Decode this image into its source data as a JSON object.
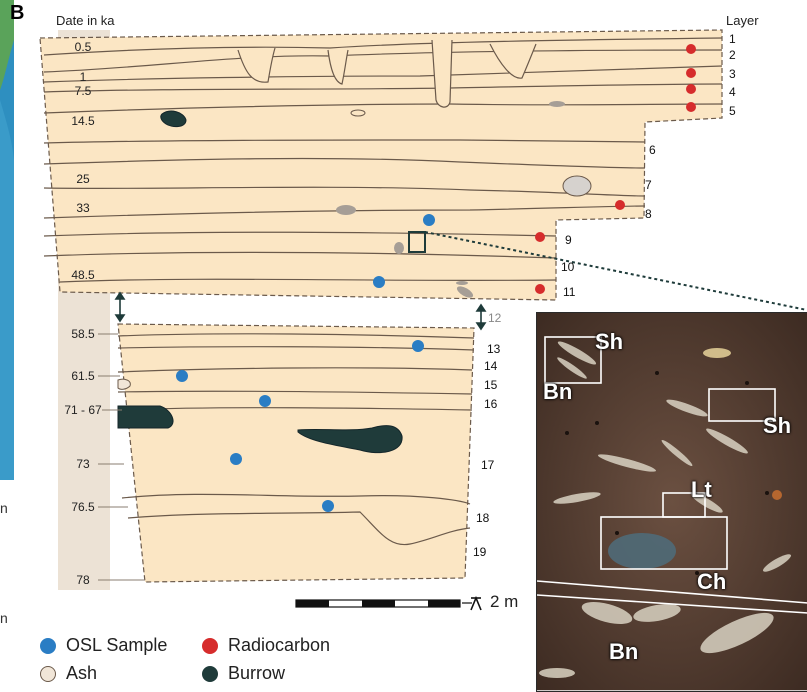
{
  "panel_label": "B",
  "headers": {
    "date": "Date in ka",
    "layer": "Layer"
  },
  "dates": [
    "0.5",
    "1",
    "7.5",
    "14.5",
    "25",
    "33",
    "48.5",
    "58.5",
    "61.5",
    "71 - 67",
    "73",
    "76.5",
    "78"
  ],
  "layers": [
    "1",
    "2",
    "3",
    "4",
    "5",
    "6",
    "7",
    "8",
    "9",
    "10",
    "11",
    "12",
    "13",
    "14",
    "15",
    "16",
    "17",
    "18",
    "19"
  ],
  "scale_label": "2 m",
  "micro_labels": {
    "sh1": "Sh",
    "bn1": "Bn",
    "sh2": "Sh",
    "lt": "Lt",
    "ch": "Ch",
    "bn2": "Bn"
  },
  "legend": {
    "osl": "OSL Sample",
    "radiocarbon": "Radiocarbon",
    "ash": "Ash",
    "burrow": "Burrow"
  },
  "left_fragment": [
    "n",
    "n"
  ],
  "colors": {
    "sediment": "#fbe6c4",
    "osl": "#2a7dc4",
    "radiocarbon": "#d62c2c",
    "ash": "#f1e6d8",
    "burrow": "#1f3b3a",
    "line": "#6b5a4b"
  }
}
